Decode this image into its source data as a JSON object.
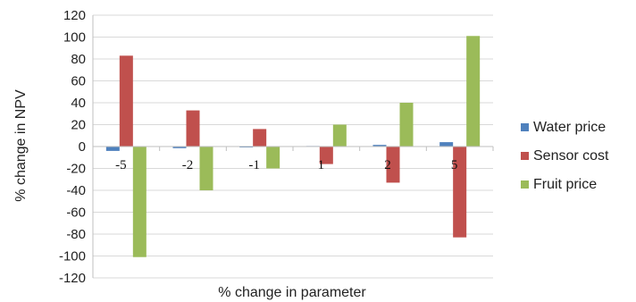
{
  "chart_data": {
    "type": "bar",
    "categories": [
      "-5",
      "-2",
      "-1",
      "1",
      "2",
      "5"
    ],
    "series": [
      {
        "name": "Water price",
        "color": "#4f81bd",
        "values": [
          -4,
          -1.5,
          -0.5,
          0.5,
          1.5,
          4
        ]
      },
      {
        "name": "Sensor cost",
        "color": "#c0504d",
        "values": [
          83,
          33,
          16,
          -16,
          -33,
          -83
        ]
      },
      {
        "name": "Fruit price",
        "color": "#9bbb59",
        "values": [
          -101,
          -40,
          -20,
          20,
          40,
          101
        ]
      }
    ],
    "yticks": [
      120,
      100,
      80,
      60,
      40,
      20,
      0,
      -20,
      -40,
      -60,
      -80,
      -100,
      -120
    ],
    "ylim": [
      -120,
      120
    ],
    "xlabel": "% change in parameter",
    "ylabel": "% change in NPV",
    "grid": true,
    "legend": "right"
  }
}
